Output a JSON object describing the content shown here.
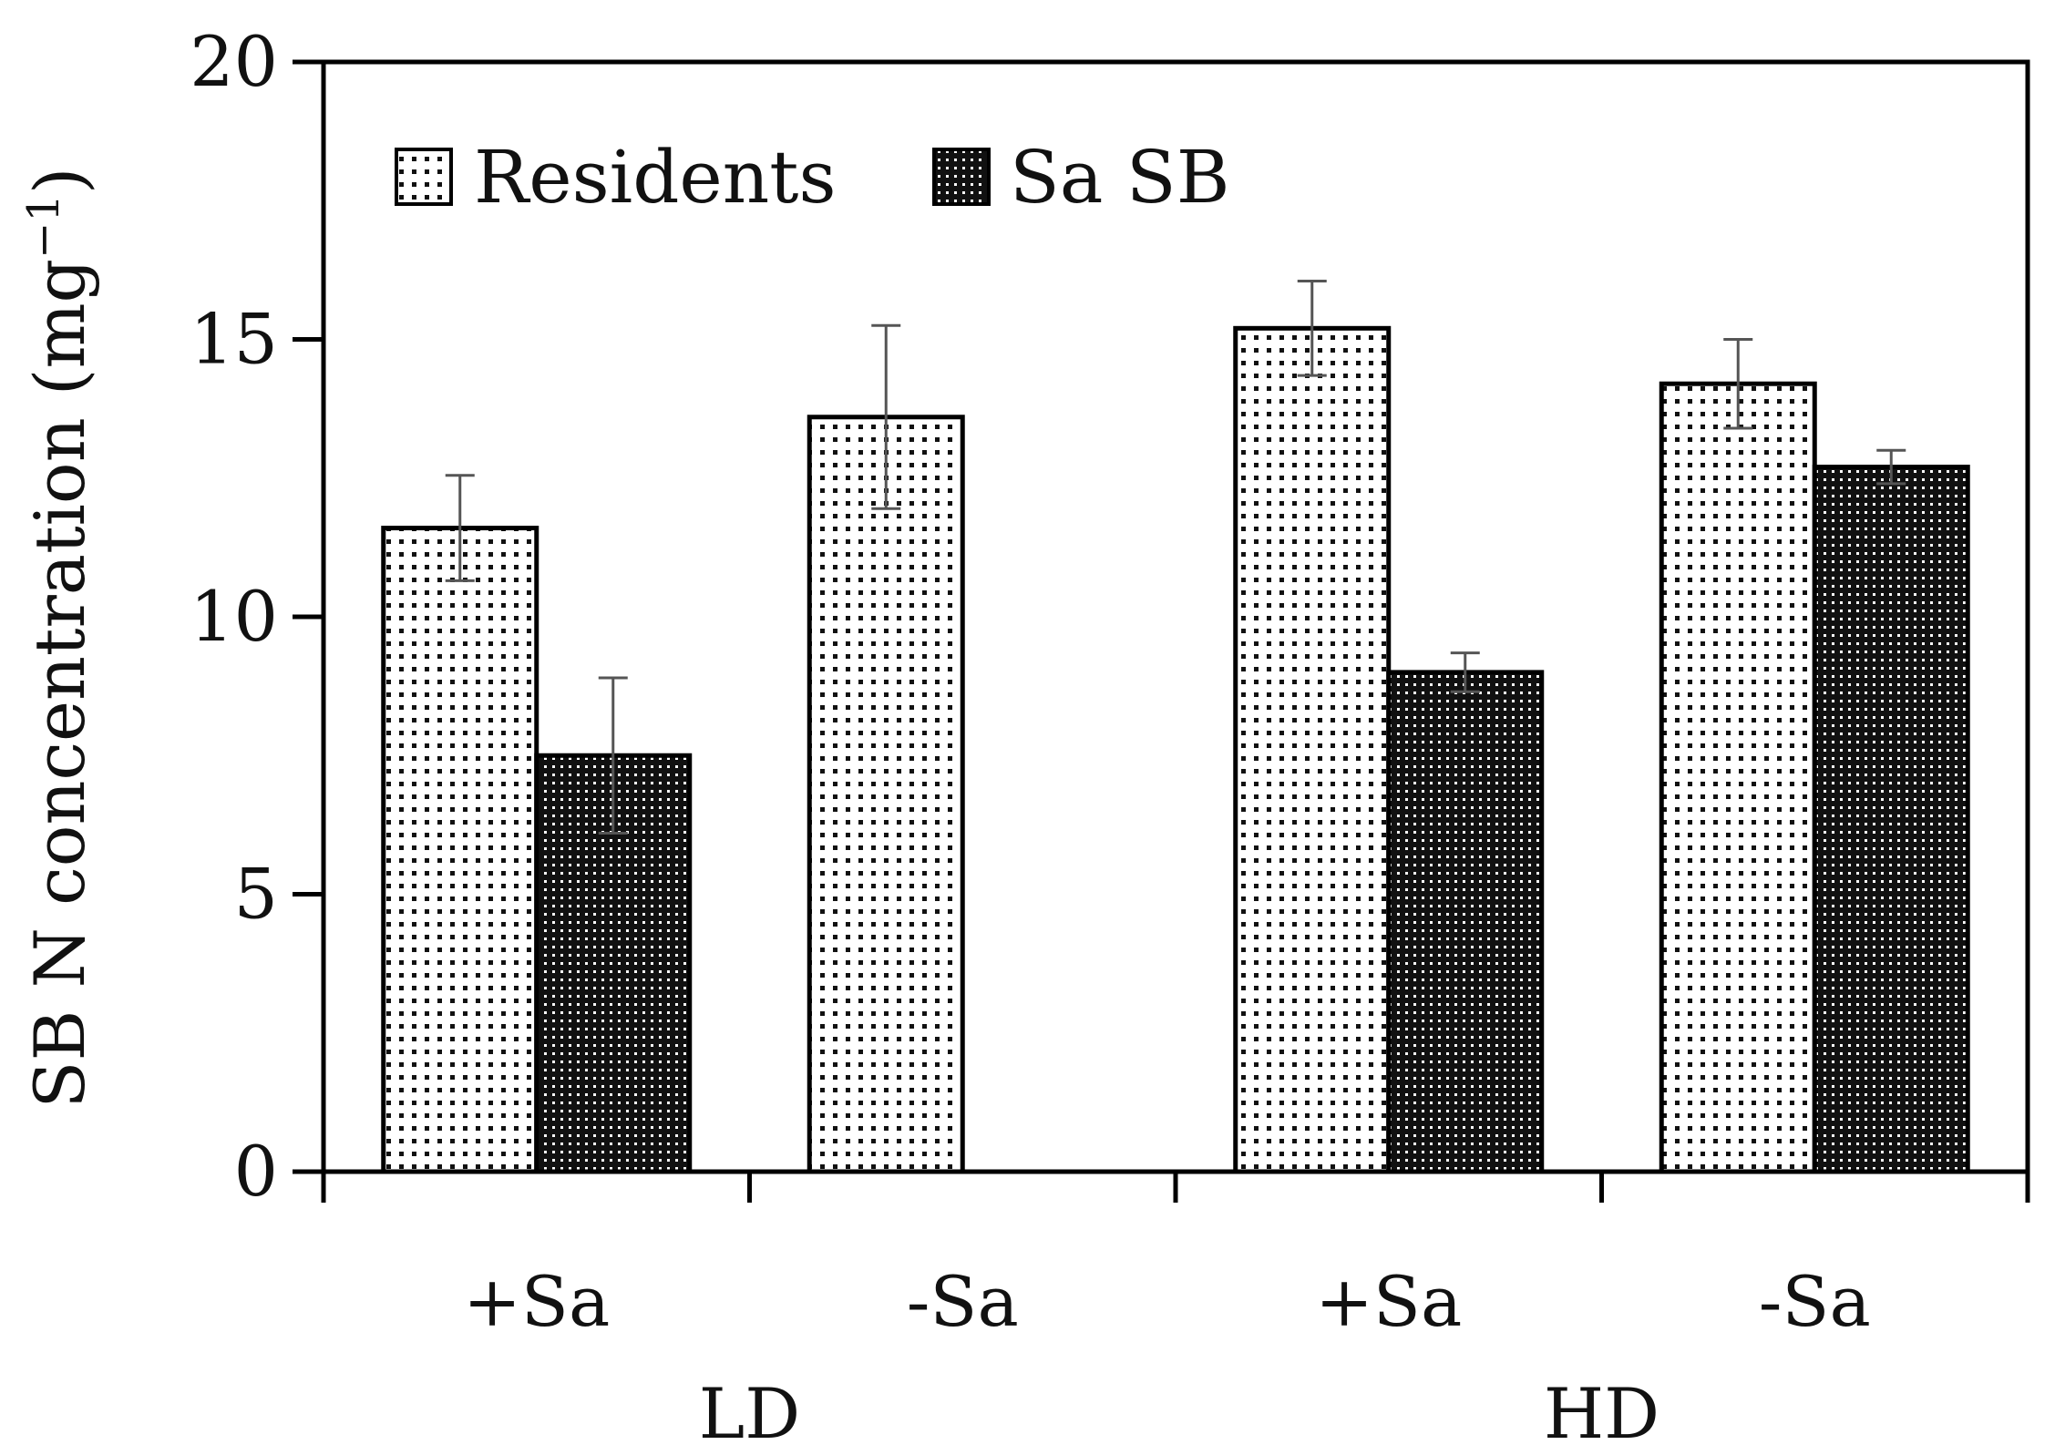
{
  "chart_data": {
    "type": "bar",
    "title": "",
    "xlabel": "",
    "ylabel": "SB N concentration (mg",
    "ylabel_superscript": "−1",
    "ylabel_close": ")",
    "ylim": [
      0,
      20
    ],
    "yticks": [
      0,
      5,
      10,
      15,
      20
    ],
    "categories": [
      "+Sa",
      "-Sa",
      "+Sa",
      "-Sa"
    ],
    "groups": [
      {
        "label": "LD",
        "categories": [
          0,
          1
        ]
      },
      {
        "label": "HD",
        "categories": [
          2,
          3
        ]
      }
    ],
    "series": [
      {
        "name": "Residents",
        "pattern": "light-dots",
        "values": [
          11.6,
          13.6,
          15.2,
          14.2
        ],
        "errors": [
          0.95,
          1.65,
          0.85,
          0.8
        ]
      },
      {
        "name": "Sa SB",
        "pattern": "dark-dots",
        "values": [
          7.5,
          null,
          9.0,
          12.7
        ],
        "errors": [
          1.4,
          null,
          0.35,
          0.3
        ]
      }
    ],
    "legend_position": "top-left",
    "grid": false,
    "colors": {
      "bar_edge": "#000000",
      "error_bar": "#555555",
      "axis": "#000000"
    }
  }
}
